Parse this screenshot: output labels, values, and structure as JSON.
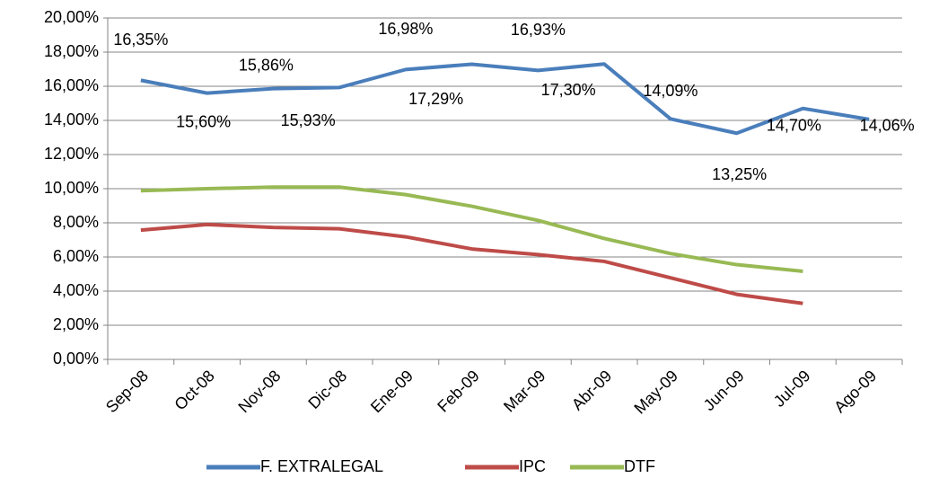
{
  "chart_data": {
    "type": "line",
    "categories": [
      "Sep-08",
      "Oct-08",
      "Nov-08",
      "Dic-08",
      "Ene-09",
      "Feb-09",
      "Mar-09",
      "Abr-09",
      "May-09",
      "Jun-09",
      "Jul-09",
      "Ago-09"
    ],
    "series": [
      {
        "name": "F. EXTRALEGAL",
        "color": "#4a7ebb",
        "values": [
          16.35,
          15.6,
          15.86,
          15.93,
          16.98,
          17.29,
          16.93,
          17.3,
          14.09,
          13.25,
          14.7,
          14.06
        ],
        "value_labels": [
          "16,35%",
          "15,60%",
          "15,86%",
          "15,93%",
          "16,98%",
          "17,29%",
          "16,93%",
          "17,30%",
          "14,09%",
          "13,25%",
          "14,70%",
          "14,06%"
        ]
      },
      {
        "name": "IPC",
        "color": "#be4b48",
        "values": [
          7.57,
          7.9,
          7.73,
          7.65,
          7.18,
          6.47,
          6.14,
          5.74,
          4.78,
          3.81,
          3.28,
          null
        ]
      },
      {
        "name": "DTF",
        "color": "#98b954",
        "values": [
          9.88,
          10.0,
          10.09,
          10.09,
          9.65,
          8.97,
          8.14,
          7.08,
          6.2,
          5.55,
          5.16,
          null
        ]
      }
    ],
    "ylim": [
      0,
      20
    ],
    "yticks": [
      {
        "value": 0,
        "label": "0,00%"
      },
      {
        "value": 2,
        "label": "2,00%"
      },
      {
        "value": 4,
        "label": "4,00%"
      },
      {
        "value": 6,
        "label": "6,00%"
      },
      {
        "value": 8,
        "label": "8,00%"
      },
      {
        "value": 10,
        "label": "10,00%"
      },
      {
        "value": 12,
        "label": "12,00%"
      },
      {
        "value": 14,
        "label": "14,00%"
      },
      {
        "value": 16,
        "label": "16,00%"
      },
      {
        "value": 18,
        "label": "18,00%"
      },
      {
        "value": 20,
        "label": "20,00%"
      }
    ],
    "grid": true,
    "legend": "bottom"
  }
}
